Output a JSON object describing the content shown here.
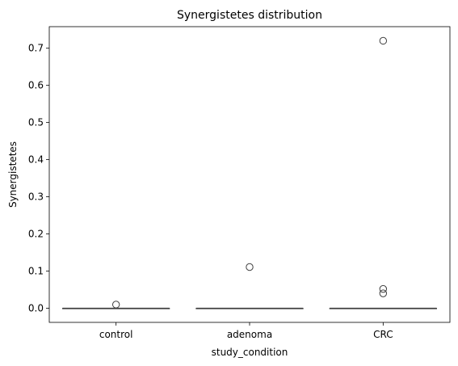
{
  "chart_data": {
    "type": "box",
    "title": "Synergistetes distribution",
    "xlabel": "study_condition",
    "ylabel": "Synergistetes",
    "categories": [
      "control",
      "adenoma",
      "CRC"
    ],
    "ylim": [
      -0.038,
      0.758
    ],
    "yticks": [
      0.0,
      0.1,
      0.2,
      0.3,
      0.4,
      0.5,
      0.6,
      0.7
    ],
    "ytick_labels": [
      "0.0",
      "0.1",
      "0.2",
      "0.3",
      "0.4",
      "0.5",
      "0.6",
      "0.7"
    ],
    "grid": false,
    "boxes": [
      {
        "category": "control",
        "min": 0.0,
        "q1": 0.0,
        "median": 0.0,
        "q3": 0.0,
        "max": 0.0,
        "outliers": [
          0.01
        ]
      },
      {
        "category": "adenoma",
        "min": 0.0,
        "q1": 0.0,
        "median": 0.0,
        "q3": 0.0,
        "max": 0.0,
        "outliers": [
          0.111
        ]
      },
      {
        "category": "CRC",
        "min": 0.0,
        "q1": 0.0,
        "median": 0.0,
        "q3": 0.0,
        "max": 0.0,
        "outliers": [
          0.72,
          0.052,
          0.04
        ]
      }
    ]
  }
}
